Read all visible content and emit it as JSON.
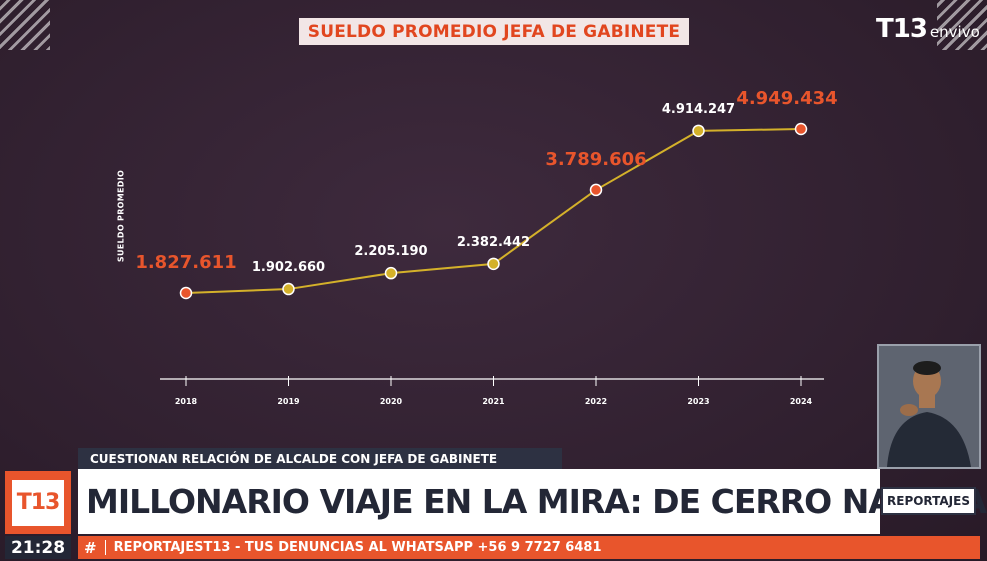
{
  "chart_title": "SUELDO PROMEDIO JEFA DE GABINETE",
  "brand": {
    "logo": "T13",
    "sub": "envivo"
  },
  "chart_data": {
    "type": "line",
    "title": "SUELDO PROMEDIO JEFA DE GABINETE",
    "ylabel": "SUELDO PROMEDIO",
    "xlabel": "",
    "categories": [
      "2018",
      "2019",
      "2020",
      "2021",
      "2022",
      "2023",
      "2024"
    ],
    "values": [
      1827611,
      1902660,
      2205190,
      2382442,
      3789606,
      4914247,
      4949434
    ],
    "value_labels": [
      "1.827.611",
      "1.902.660",
      "2.205.190",
      "2.382.442",
      "3.789.606",
      "4.914.247",
      "4.949.434"
    ],
    "highlighted": [
      true,
      false,
      false,
      false,
      true,
      false,
      true
    ],
    "grid": false,
    "line_color": "#d4b12a",
    "highlight_color": "#e8552c",
    "point_color": "#d4b12a"
  },
  "lower_third": {
    "kicker": "CUESTIONAN RELACIÓN DE ALCALDE CON JEFA DE GABINETE",
    "headline": "MILLONARIO VIAJE EN LA MIRA: DE CERRO NAVIA A DUBAI",
    "badge": "REPORTAJES",
    "logo": "T13",
    "time": "21:28",
    "ticker_hash": "#",
    "ticker": "REPORTAJEST13 - TUS DENUNCIAS AL WHATSAPP +56 9 7727 6481"
  },
  "colors": {
    "accent": "#e8552c",
    "background": "#362434",
    "navy": "#232736"
  },
  "icons": {
    "interpreter": "sign-language-interpreter-figure"
  }
}
